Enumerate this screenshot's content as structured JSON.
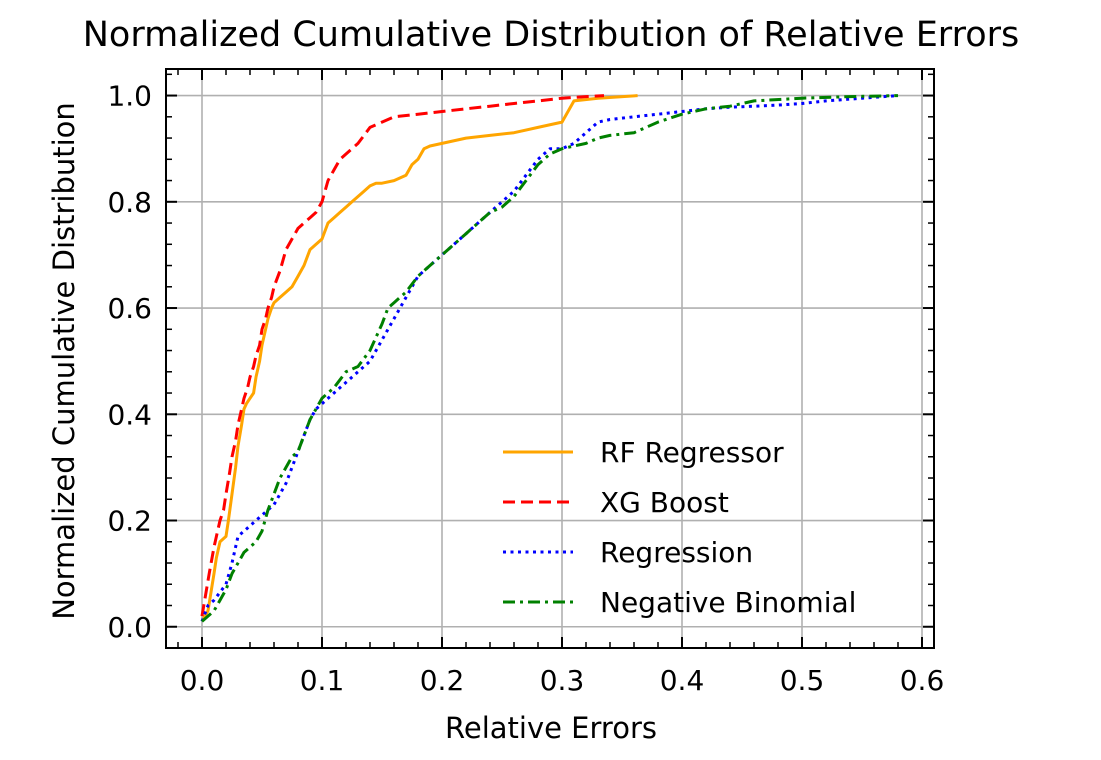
{
  "chart_data": {
    "type": "line",
    "title": "Normalized Cumulative Distribution of Relative Errors",
    "xlabel": "Relative Errors",
    "ylabel": "Normalized Cumulative Distribution",
    "xlim": [
      -0.03,
      0.61
    ],
    "ylim": [
      -0.04,
      1.05
    ],
    "xticks": [
      0.0,
      0.1,
      0.2,
      0.3,
      0.4,
      0.5,
      0.6
    ],
    "xtick_labels": [
      "0.0",
      "0.1",
      "0.2",
      "0.3",
      "0.4",
      "0.5",
      "0.6"
    ],
    "yticks": [
      0.0,
      0.2,
      0.4,
      0.6,
      0.8,
      1.0
    ],
    "ytick_labels": [
      "0.0",
      "0.2",
      "0.4",
      "0.6",
      "0.8",
      "1.0"
    ],
    "grid": true,
    "legend_position": "lower-right",
    "series": [
      {
        "name": "RF Regressor",
        "color": "#FFA500",
        "dash": "solid",
        "x": [
          0.0,
          0.005,
          0.01,
          0.012,
          0.015,
          0.02,
          0.022,
          0.025,
          0.028,
          0.03,
          0.033,
          0.035,
          0.037,
          0.04,
          0.043,
          0.045,
          0.048,
          0.05,
          0.053,
          0.055,
          0.058,
          0.06,
          0.065,
          0.07,
          0.075,
          0.08,
          0.085,
          0.09,
          0.1,
          0.105,
          0.11,
          0.115,
          0.12,
          0.125,
          0.13,
          0.135,
          0.14,
          0.145,
          0.15,
          0.16,
          0.17,
          0.175,
          0.18,
          0.185,
          0.19,
          0.2,
          0.22,
          0.24,
          0.26,
          0.28,
          0.3,
          0.305,
          0.31,
          0.33,
          0.363
        ],
        "y": [
          0.01,
          0.03,
          0.1,
          0.13,
          0.16,
          0.17,
          0.2,
          0.25,
          0.3,
          0.34,
          0.38,
          0.41,
          0.42,
          0.43,
          0.44,
          0.47,
          0.5,
          0.53,
          0.56,
          0.58,
          0.6,
          0.61,
          0.62,
          0.63,
          0.64,
          0.66,
          0.68,
          0.71,
          0.73,
          0.76,
          0.77,
          0.78,
          0.79,
          0.8,
          0.81,
          0.82,
          0.83,
          0.835,
          0.835,
          0.84,
          0.85,
          0.87,
          0.88,
          0.9,
          0.905,
          0.91,
          0.92,
          0.925,
          0.93,
          0.94,
          0.95,
          0.97,
          0.99,
          0.995,
          1.0
        ]
      },
      {
        "name": "XG Boost",
        "color": "#FF0000",
        "dash": "dashed",
        "x": [
          0.0,
          0.003,
          0.006,
          0.01,
          0.012,
          0.015,
          0.018,
          0.02,
          0.023,
          0.025,
          0.028,
          0.03,
          0.033,
          0.035,
          0.038,
          0.04,
          0.043,
          0.045,
          0.048,
          0.05,
          0.053,
          0.055,
          0.058,
          0.06,
          0.065,
          0.07,
          0.075,
          0.08,
          0.085,
          0.09,
          0.095,
          0.1,
          0.105,
          0.11,
          0.115,
          0.12,
          0.13,
          0.14,
          0.15,
          0.16,
          0.18,
          0.2,
          0.22,
          0.24,
          0.26,
          0.28,
          0.3,
          0.32,
          0.335
        ],
        "y": [
          0.02,
          0.06,
          0.1,
          0.15,
          0.17,
          0.2,
          0.22,
          0.25,
          0.29,
          0.32,
          0.35,
          0.38,
          0.41,
          0.43,
          0.45,
          0.47,
          0.49,
          0.51,
          0.53,
          0.56,
          0.58,
          0.6,
          0.62,
          0.64,
          0.67,
          0.71,
          0.73,
          0.75,
          0.76,
          0.77,
          0.78,
          0.8,
          0.84,
          0.86,
          0.88,
          0.89,
          0.91,
          0.94,
          0.95,
          0.96,
          0.965,
          0.97,
          0.975,
          0.98,
          0.985,
          0.99,
          0.995,
          0.998,
          1.0
        ]
      },
      {
        "name": "Regression",
        "color": "#0000FF",
        "dash": "dotted",
        "x": [
          0.0,
          0.005,
          0.01,
          0.02,
          0.025,
          0.03,
          0.035,
          0.04,
          0.045,
          0.05,
          0.055,
          0.06,
          0.065,
          0.07,
          0.075,
          0.08,
          0.085,
          0.09,
          0.095,
          0.1,
          0.11,
          0.12,
          0.13,
          0.14,
          0.15,
          0.16,
          0.17,
          0.18,
          0.19,
          0.2,
          0.21,
          0.22,
          0.23,
          0.24,
          0.25,
          0.26,
          0.27,
          0.28,
          0.29,
          0.3,
          0.31,
          0.32,
          0.33,
          0.34,
          0.36,
          0.38,
          0.4,
          0.42,
          0.44,
          0.46,
          0.48,
          0.5,
          0.52,
          0.55,
          0.58
        ],
        "y": [
          0.01,
          0.04,
          0.05,
          0.08,
          0.12,
          0.17,
          0.18,
          0.19,
          0.2,
          0.21,
          0.22,
          0.23,
          0.25,
          0.27,
          0.3,
          0.33,
          0.36,
          0.39,
          0.41,
          0.42,
          0.44,
          0.46,
          0.48,
          0.5,
          0.54,
          0.58,
          0.62,
          0.66,
          0.68,
          0.7,
          0.72,
          0.74,
          0.76,
          0.78,
          0.8,
          0.82,
          0.85,
          0.88,
          0.9,
          0.9,
          0.91,
          0.93,
          0.95,
          0.955,
          0.96,
          0.965,
          0.97,
          0.975,
          0.978,
          0.98,
          0.982,
          0.985,
          0.99,
          0.995,
          1.0
        ]
      },
      {
        "name": "Negative Binomial",
        "color": "#008000",
        "dash": "dashdot",
        "x": [
          0.0,
          0.005,
          0.01,
          0.015,
          0.02,
          0.025,
          0.03,
          0.035,
          0.04,
          0.045,
          0.05,
          0.055,
          0.06,
          0.065,
          0.07,
          0.075,
          0.08,
          0.085,
          0.09,
          0.095,
          0.1,
          0.11,
          0.12,
          0.13,
          0.14,
          0.15,
          0.155,
          0.16,
          0.17,
          0.18,
          0.19,
          0.2,
          0.21,
          0.22,
          0.23,
          0.24,
          0.25,
          0.26,
          0.27,
          0.28,
          0.29,
          0.3,
          0.31,
          0.32,
          0.33,
          0.34,
          0.36,
          0.38,
          0.4,
          0.42,
          0.44,
          0.46,
          0.5,
          0.54,
          0.58
        ],
        "y": [
          0.01,
          0.02,
          0.03,
          0.05,
          0.07,
          0.1,
          0.12,
          0.14,
          0.15,
          0.16,
          0.18,
          0.22,
          0.25,
          0.28,
          0.3,
          0.32,
          0.33,
          0.36,
          0.39,
          0.41,
          0.43,
          0.45,
          0.48,
          0.49,
          0.52,
          0.57,
          0.6,
          0.61,
          0.63,
          0.66,
          0.68,
          0.7,
          0.72,
          0.74,
          0.76,
          0.78,
          0.79,
          0.81,
          0.84,
          0.87,
          0.89,
          0.9,
          0.905,
          0.91,
          0.92,
          0.925,
          0.93,
          0.95,
          0.965,
          0.975,
          0.98,
          0.99,
          0.995,
          0.998,
          1.0
        ]
      }
    ]
  }
}
